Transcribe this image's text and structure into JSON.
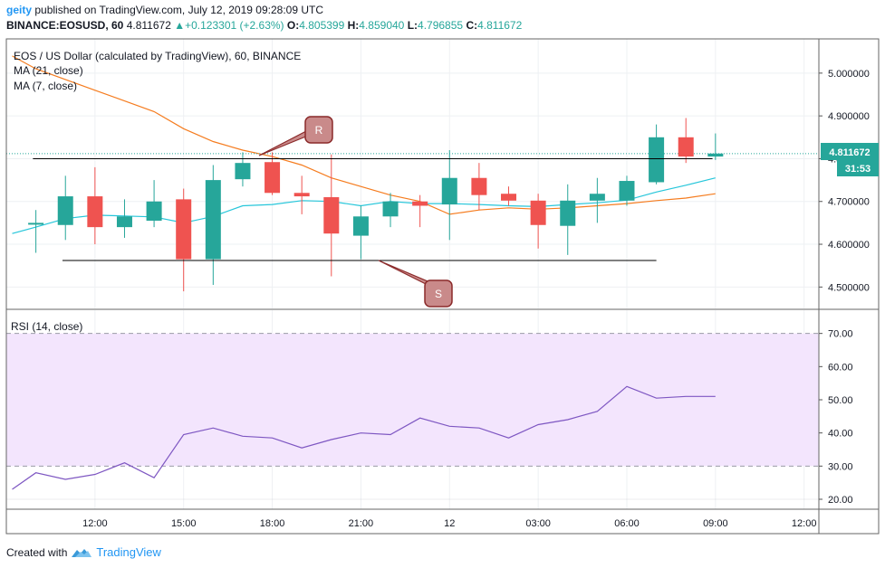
{
  "header": {
    "user": "geity",
    "published_text": " published on TradingView.com, July 12, 2019 09:28:09 UTC",
    "symbol": "BINANCE:EOSUSD, 60",
    "last": "4.811672",
    "change": "+0.123301 (+2.63%)",
    "o_label": "O:",
    "o_value": "4.805399",
    "h_label": "H:",
    "h_value": "4.859040",
    "l_label": "L:",
    "l_value": "4.796855",
    "c_label": "C:",
    "c_value": "4.811672"
  },
  "legend": {
    "title": "EOS / US Dollar (calculated by TradingView), 60, BINANCE",
    "ma21": "MA (21, close)",
    "ma7": "MA (7, close)",
    "rsi": "RSI (14, close)"
  },
  "price_tag": {
    "value": "4.811672",
    "countdown": "31:53"
  },
  "annotations": {
    "resistance": "R",
    "support": "S"
  },
  "footer": {
    "created_with": "Created with",
    "brand": "TradingView"
  },
  "colors": {
    "up": "#26a69a",
    "down": "#ef5350",
    "ma21": "#f57c1f",
    "ma7": "#26c6da",
    "rsi": "#7e57c2",
    "rsi_band": "#f3e5fd",
    "label_fill": "#c98a8a",
    "label_stroke": "#8b2a2a"
  },
  "chart_data": [
    {
      "type": "candlestick",
      "title": "EOS / US Dollar (calculated by TradingView), 60, BINANCE",
      "ylim": [
        4.45,
        5.08
      ],
      "y_ticks": [
        4.5,
        4.6,
        4.7,
        4.8,
        4.9,
        5.0
      ],
      "y_tick_labels": [
        "4.500000",
        "4.600000",
        "4.700000",
        "4.800000",
        "4.900000",
        "5.000000"
      ],
      "x_ticks": [
        12,
        15,
        18,
        21,
        24,
        27,
        30,
        33,
        36
      ],
      "x_tick_labels": [
        "12:00",
        "15:00",
        "18:00",
        "21:00",
        "12",
        "03:00",
        "06:00",
        "09:00",
        "12:00"
      ],
      "x_range": [
        9.0,
        36.5
      ],
      "candles": [
        {
          "t": 10,
          "o": 4.65,
          "h": 4.68,
          "l": 4.58,
          "c": 4.65
        },
        {
          "t": 11,
          "o": 4.645,
          "h": 4.76,
          "l": 4.61,
          "c": 4.712
        },
        {
          "t": 12,
          "o": 4.712,
          "h": 4.78,
          "l": 4.6,
          "c": 4.64
        },
        {
          "t": 13,
          "o": 4.64,
          "h": 4.705,
          "l": 4.615,
          "c": 4.665
        },
        {
          "t": 14,
          "o": 4.655,
          "h": 4.75,
          "l": 4.64,
          "c": 4.7
        },
        {
          "t": 15,
          "o": 4.705,
          "h": 4.73,
          "l": 4.49,
          "c": 4.565
        },
        {
          "t": 16,
          "o": 4.565,
          "h": 4.785,
          "l": 4.505,
          "c": 4.75
        },
        {
          "t": 17,
          "o": 4.752,
          "h": 4.815,
          "l": 4.735,
          "c": 4.79
        },
        {
          "t": 18,
          "o": 4.792,
          "h": 4.815,
          "l": 4.715,
          "c": 4.72
        },
        {
          "t": 19,
          "o": 4.72,
          "h": 4.76,
          "l": 4.67,
          "c": 4.712
        },
        {
          "t": 20,
          "o": 4.71,
          "h": 4.81,
          "l": 4.525,
          "c": 4.625
        },
        {
          "t": 21,
          "o": 4.62,
          "h": 4.69,
          "l": 4.565,
          "c": 4.665
        },
        {
          "t": 22,
          "o": 4.665,
          "h": 4.72,
          "l": 4.64,
          "c": 4.7
        },
        {
          "t": 23,
          "o": 4.7,
          "h": 4.715,
          "l": 4.64,
          "c": 4.69
        },
        {
          "t": 24,
          "o": 4.693,
          "h": 4.82,
          "l": 4.61,
          "c": 4.755
        },
        {
          "t": 25,
          "o": 4.755,
          "h": 4.79,
          "l": 4.68,
          "c": 4.715
        },
        {
          "t": 26,
          "o": 4.718,
          "h": 4.735,
          "l": 4.69,
          "c": 4.702
        },
        {
          "t": 27,
          "o": 4.702,
          "h": 4.718,
          "l": 4.59,
          "c": 4.645
        },
        {
          "t": 28,
          "o": 4.643,
          "h": 4.74,
          "l": 4.575,
          "c": 4.702
        },
        {
          "t": 29,
          "o": 4.702,
          "h": 4.755,
          "l": 4.65,
          "c": 4.718
        },
        {
          "t": 30,
          "o": 4.702,
          "h": 4.76,
          "l": 4.69,
          "c": 4.748
        },
        {
          "t": 31,
          "o": 4.745,
          "h": 4.88,
          "l": 4.74,
          "c": 4.85
        },
        {
          "t": 32,
          "o": 4.85,
          "h": 4.895,
          "l": 4.79,
          "c": 4.805
        },
        {
          "t": 33,
          "o": 4.805,
          "h": 4.859,
          "l": 4.797,
          "c": 4.812
        }
      ],
      "ma21": {
        "name": "MA (21, close)",
        "points": [
          [
            9.2,
            5.04
          ],
          [
            10,
            5.01
          ],
          [
            12,
            4.96
          ],
          [
            14,
            4.91
          ],
          [
            15,
            4.87
          ],
          [
            16,
            4.84
          ],
          [
            17,
            4.82
          ],
          [
            18,
            4.805
          ],
          [
            19,
            4.785
          ],
          [
            20,
            4.755
          ],
          [
            21,
            4.735
          ],
          [
            22,
            4.715
          ],
          [
            23,
            4.7
          ],
          [
            24,
            4.67
          ],
          [
            25,
            4.68
          ],
          [
            26,
            4.685
          ],
          [
            27,
            4.682
          ],
          [
            28,
            4.685
          ],
          [
            29,
            4.69
          ],
          [
            30,
            4.695
          ],
          [
            31,
            4.702
          ],
          [
            32,
            4.708
          ],
          [
            33,
            4.718
          ]
        ]
      },
      "ma7": {
        "name": "MA (7, close)",
        "points": [
          [
            9.2,
            4.625
          ],
          [
            10,
            4.64
          ],
          [
            11,
            4.66
          ],
          [
            12,
            4.668
          ],
          [
            13,
            4.666
          ],
          [
            14,
            4.664
          ],
          [
            15,
            4.65
          ],
          [
            16,
            4.665
          ],
          [
            17,
            4.69
          ],
          [
            18,
            4.693
          ],
          [
            19,
            4.702
          ],
          [
            20,
            4.7
          ],
          [
            21,
            4.69
          ],
          [
            22,
            4.7
          ],
          [
            23,
            4.695
          ],
          [
            24,
            4.695
          ],
          [
            25,
            4.693
          ],
          [
            26,
            4.69
          ],
          [
            27,
            4.688
          ],
          [
            28,
            4.693
          ],
          [
            29,
            4.697
          ],
          [
            30,
            4.703
          ],
          [
            31,
            4.722
          ],
          [
            32,
            4.738
          ],
          [
            33,
            4.755
          ]
        ]
      },
      "resistance": {
        "x1": 9.9,
        "x2": 32.9,
        "y": 4.8
      },
      "support": {
        "x1": 10.9,
        "x2": 31.0,
        "y": 4.562
      }
    },
    {
      "type": "line",
      "title": "RSI (14, close)",
      "ylim": [
        17,
        77
      ],
      "y_ticks": [
        20,
        30,
        40,
        50,
        60,
        70
      ],
      "y_tick_labels": [
        "20.00",
        "30.00",
        "40.00",
        "50.00",
        "60.00",
        "70.00"
      ],
      "band": [
        30,
        70
      ],
      "series": [
        {
          "name": "RSI (14, close)",
          "x": [
            9.2,
            10,
            11,
            12,
            13,
            14,
            15,
            16,
            17,
            18,
            19,
            20,
            21,
            22,
            23,
            24,
            25,
            26,
            27,
            28,
            29,
            30,
            31,
            32,
            33
          ],
          "values": [
            23.0,
            28.0,
            26.0,
            27.5,
            31.0,
            26.5,
            39.5,
            41.5,
            39.0,
            38.5,
            35.5,
            38.0,
            40.0,
            39.5,
            44.5,
            42.0,
            41.5,
            38.5,
            42.5,
            44.0,
            46.5,
            54.0,
            50.5,
            51.0,
            51.0
          ]
        }
      ]
    }
  ]
}
